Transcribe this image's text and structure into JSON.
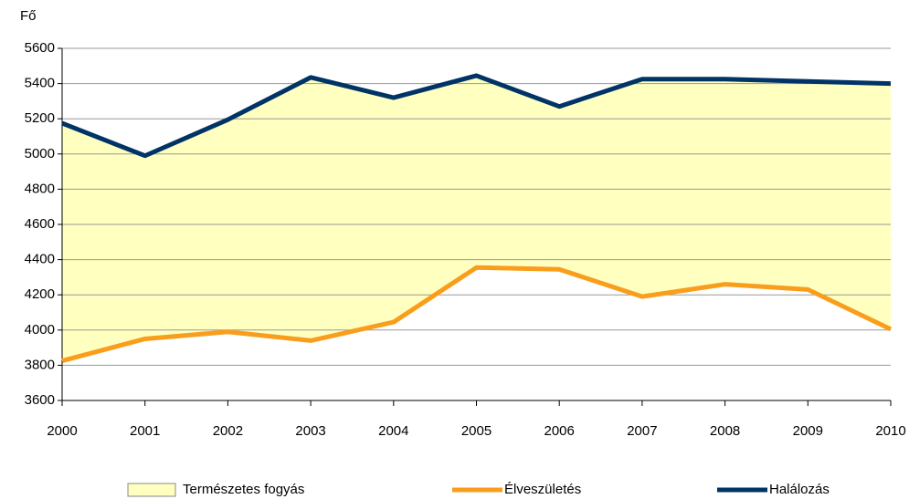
{
  "chart_data": {
    "type": "line",
    "y_label": "Fő",
    "x": [
      2000,
      2001,
      2002,
      2003,
      2004,
      2005,
      2006,
      2007,
      2008,
      2009,
      2010
    ],
    "xlim": [
      2000,
      2010
    ],
    "xticks": [
      2000,
      2001,
      2002,
      2003,
      2004,
      2005,
      2006,
      2007,
      2008,
      2009,
      2010
    ],
    "ylim": [
      3600,
      5600
    ],
    "yticks": [
      3600,
      3800,
      4000,
      4200,
      4400,
      4600,
      4800,
      5000,
      5200,
      5400,
      5600
    ],
    "grid": true,
    "area": {
      "name": "Természetes fogyás",
      "color": "#ffffc0"
    },
    "series": [
      {
        "name": "Élveszületés",
        "color": "#f99d1c",
        "values": [
          3825,
          3950,
          3990,
          3940,
          4045,
          4355,
          4345,
          4190,
          4260,
          4230,
          4005
        ]
      },
      {
        "name": "Halálozás",
        "color": "#003366",
        "values": [
          5175,
          4990,
          5195,
          5435,
          5320,
          5445,
          5270,
          5425,
          5425,
          5412,
          5400
        ]
      }
    ]
  }
}
